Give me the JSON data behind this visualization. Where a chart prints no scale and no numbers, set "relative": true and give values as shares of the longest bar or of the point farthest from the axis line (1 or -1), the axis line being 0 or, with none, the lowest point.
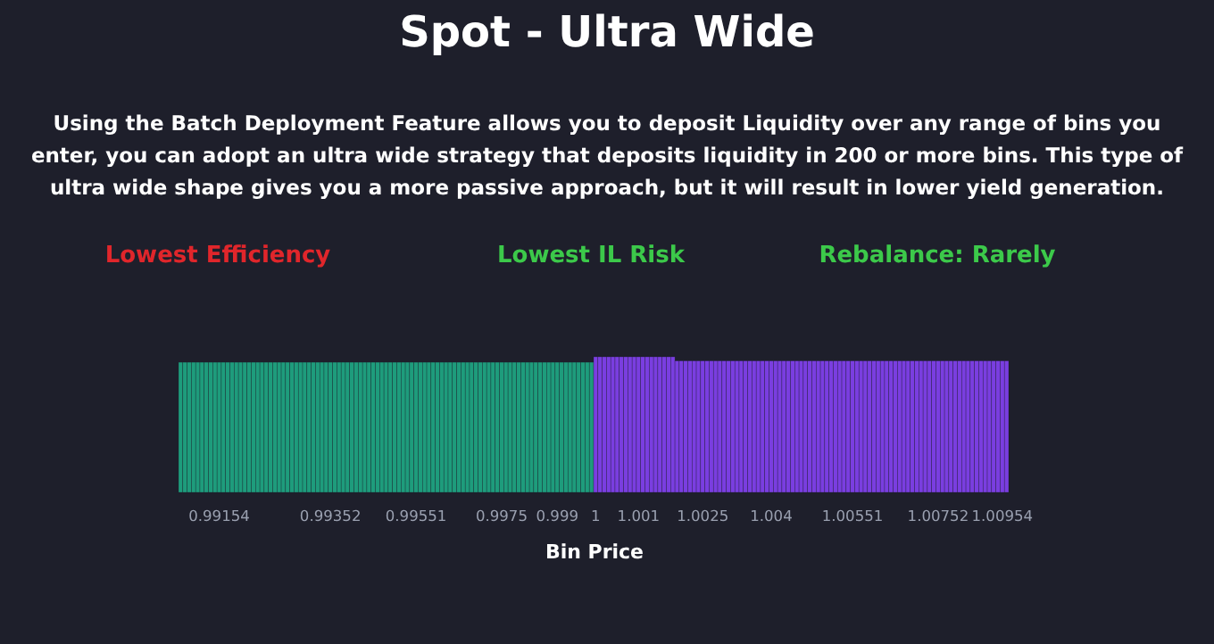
{
  "chart_data": {
    "type": "bar",
    "relative": true,
    "title": "Spot - Ultra Wide",
    "subtitle": "Using the Batch Deployment Feature allows you to deposit Liquidity over any range of bins you enter, you can adopt an ultra wide strategy that deposits liquidity in 200 or more bins. This type of ultra wide shape gives you a more passive approach, but it will result in lower yield generation.",
    "annotations": [
      "Lowest Efficiency",
      "Lowest IL Risk",
      "Rebalance: Rarely"
    ],
    "xlabel": "Bin Price",
    "categories": [
      null,
      null,
      null,
      null,
      null,
      null,
      null,
      null,
      null,
      "0.99154",
      null,
      null,
      null,
      null,
      null,
      null,
      null,
      null,
      null,
      null,
      null,
      null,
      null,
      null,
      null,
      null,
      null,
      null,
      null,
      null,
      null,
      null,
      null,
      null,
      null,
      "0.99352",
      null,
      null,
      null,
      null,
      null,
      null,
      null,
      null,
      null,
      null,
      null,
      null,
      null,
      null,
      null,
      null,
      null,
      null,
      null,
      "0.99551",
      null,
      null,
      null,
      null,
      null,
      null,
      null,
      null,
      null,
      null,
      null,
      null,
      null,
      null,
      null,
      null,
      null,
      null,
      null,
      "0.9975",
      null,
      null,
      null,
      null,
      null,
      null,
      null,
      null,
      null,
      null,
      null,
      null,
      "0.999",
      null,
      null,
      null,
      null,
      null,
      null,
      null,
      null,
      "1",
      null,
      null,
      null,
      null,
      null,
      null,
      null,
      null,
      null,
      "1.001",
      null,
      null,
      null,
      null,
      null,
      null,
      null,
      null,
      null,
      null,
      null,
      null,
      null,
      null,
      "1.0025",
      null,
      null,
      null,
      null,
      null,
      null,
      null,
      null,
      null,
      null,
      null,
      null,
      null,
      null,
      null,
      "1.004",
      null,
      null,
      null,
      null,
      null,
      null,
      null,
      null,
      null,
      null,
      null,
      null,
      null,
      null,
      null,
      null,
      null,
      null,
      "1.00551",
      null,
      null,
      null,
      null,
      null,
      null,
      null,
      null,
      null,
      null,
      null,
      null,
      null,
      null,
      null,
      null,
      null,
      null,
      null,
      "1.00752",
      null,
      null,
      null,
      null,
      null,
      null,
      null,
      null,
      null,
      null,
      null,
      null,
      null,
      null,
      "1.00954",
      null
    ],
    "values": [
      0.96,
      0.96,
      0.96,
      0.96,
      0.96,
      0.96,
      0.96,
      0.96,
      0.96,
      0.96,
      0.96,
      0.96,
      0.96,
      0.96,
      0.96,
      0.96,
      0.96,
      0.96,
      0.96,
      0.96,
      0.96,
      0.96,
      0.96,
      0.96,
      0.96,
      0.96,
      0.96,
      0.96,
      0.96,
      0.96,
      0.96,
      0.96,
      0.96,
      0.96,
      0.96,
      0.96,
      0.96,
      0.96,
      0.96,
      0.96,
      0.96,
      0.96,
      0.96,
      0.96,
      0.96,
      0.96,
      0.96,
      0.96,
      0.96,
      0.96,
      0.96,
      0.96,
      0.96,
      0.96,
      0.96,
      0.96,
      0.96,
      0.96,
      0.96,
      0.96,
      0.96,
      0.96,
      0.96,
      0.96,
      0.96,
      0.96,
      0.96,
      0.96,
      0.96,
      0.96,
      0.96,
      0.96,
      0.96,
      0.96,
      0.96,
      0.96,
      0.96,
      0.96,
      0.96,
      0.96,
      0.96,
      0.96,
      0.96,
      0.96,
      0.96,
      0.96,
      0.96,
      0.96,
      0.96,
      0.96,
      0.96,
      0.96,
      0.96,
      0.96,
      0.96,
      0.96,
      0.96,
      1,
      1,
      1,
      1,
      1,
      1,
      1,
      1,
      1,
      1,
      1,
      1,
      1,
      1,
      1,
      1,
      1,
      1,
      1,
      0.97,
      0.97,
      0.97,
      0.97,
      0.97,
      0.97,
      0.97,
      0.97,
      0.97,
      0.97,
      0.97,
      0.97,
      0.97,
      0.97,
      0.97,
      0.97,
      0.97,
      0.97,
      0.97,
      0.97,
      0.97,
      0.97,
      0.97,
      0.97,
      0.97,
      0.97,
      0.97,
      0.97,
      0.97,
      0.97,
      0.97,
      0.97,
      0.97,
      0.97,
      0.97,
      0.97,
      0.97,
      0.97,
      0.97,
      0.97,
      0.97,
      0.97,
      0.97,
      0.97,
      0.97,
      0.97,
      0.97,
      0.97,
      0.97,
      0.97,
      0.97,
      0.97,
      0.97,
      0.97,
      0.97,
      0.97,
      0.97,
      0.97,
      0.97,
      0.97,
      0.97,
      0.97,
      0.97,
      0.97,
      0.97,
      0.97,
      0.97,
      0.97,
      0.97,
      0.97,
      0.97,
      0.97,
      0.97,
      0.97,
      0.97,
      0.97,
      0.97,
      0.97
    ],
    "colors": [
      "#1e9c7c",
      "#1e9c7c",
      "#1e9c7c",
      "#1e9c7c",
      "#1e9c7c",
      "#1e9c7c",
      "#1e9c7c",
      "#1e9c7c",
      "#1e9c7c",
      "#1e9c7c",
      "#1e9c7c",
      "#1e9c7c",
      "#1e9c7c",
      "#1e9c7c",
      "#1e9c7c",
      "#1e9c7c",
      "#1e9c7c",
      "#1e9c7c",
      "#1e9c7c",
      "#1e9c7c",
      "#1e9c7c",
      "#1e9c7c",
      "#1e9c7c",
      "#1e9c7c",
      "#1e9c7c",
      "#1e9c7c",
      "#1e9c7c",
      "#1e9c7c",
      "#1e9c7c",
      "#1e9c7c",
      "#1e9c7c",
      "#1e9c7c",
      "#1e9c7c",
      "#1e9c7c",
      "#1e9c7c",
      "#1e9c7c",
      "#1e9c7c",
      "#1e9c7c",
      "#1e9c7c",
      "#1e9c7c",
      "#1e9c7c",
      "#1e9c7c",
      "#1e9c7c",
      "#1e9c7c",
      "#1e9c7c",
      "#1e9c7c",
      "#1e9c7c",
      "#1e9c7c",
      "#1e9c7c",
      "#1e9c7c",
      "#1e9c7c",
      "#1e9c7c",
      "#1e9c7c",
      "#1e9c7c",
      "#1e9c7c",
      "#1e9c7c",
      "#1e9c7c",
      "#1e9c7c",
      "#1e9c7c",
      "#1e9c7c",
      "#1e9c7c",
      "#1e9c7c",
      "#1e9c7c",
      "#1e9c7c",
      "#1e9c7c",
      "#1e9c7c",
      "#1e9c7c",
      "#1e9c7c",
      "#1e9c7c",
      "#1e9c7c",
      "#1e9c7c",
      "#1e9c7c",
      "#1e9c7c",
      "#1e9c7c",
      "#1e9c7c",
      "#1e9c7c",
      "#1e9c7c",
      "#1e9c7c",
      "#1e9c7c",
      "#1e9c7c",
      "#1e9c7c",
      "#1e9c7c",
      "#1e9c7c",
      "#1e9c7c",
      "#1e9c7c",
      "#1e9c7c",
      "#1e9c7c",
      "#1e9c7c",
      "#1e9c7c",
      "#1e9c7c",
      "#1e9c7c",
      "#1e9c7c",
      "#1e9c7c",
      "#1e9c7c",
      "#1e9c7c",
      "#1e9c7c",
      "#1e9c7c",
      "#7a3ee0",
      "#7a3ee0",
      "#7a3ee0",
      "#7a3ee0",
      "#7a3ee0",
      "#7a3ee0",
      "#7a3ee0",
      "#7a3ee0",
      "#7a3ee0",
      "#7a3ee0",
      "#7a3ee0",
      "#7a3ee0",
      "#7a3ee0",
      "#7a3ee0",
      "#7a3ee0",
      "#7a3ee0",
      "#7a3ee0",
      "#7a3ee0",
      "#7a3ee0",
      "#7a3ee0",
      "#7a3ee0",
      "#7a3ee0",
      "#7a3ee0",
      "#7a3ee0",
      "#7a3ee0",
      "#7a3ee0",
      "#7a3ee0",
      "#7a3ee0",
      "#7a3ee0",
      "#7a3ee0",
      "#7a3ee0",
      "#7a3ee0",
      "#7a3ee0",
      "#7a3ee0",
      "#7a3ee0",
      "#7a3ee0",
      "#7a3ee0",
      "#7a3ee0",
      "#7a3ee0",
      "#7a3ee0",
      "#7a3ee0",
      "#7a3ee0",
      "#7a3ee0",
      "#7a3ee0",
      "#7a3ee0",
      "#7a3ee0",
      "#7a3ee0",
      "#7a3ee0",
      "#7a3ee0",
      "#7a3ee0",
      "#7a3ee0",
      "#7a3ee0",
      "#7a3ee0",
      "#7a3ee0",
      "#7a3ee0",
      "#7a3ee0",
      "#7a3ee0",
      "#7a3ee0",
      "#7a3ee0",
      "#7a3ee0",
      "#7a3ee0",
      "#7a3ee0",
      "#7a3ee0",
      "#7a3ee0",
      "#7a3ee0",
      "#7a3ee0",
      "#7a3ee0",
      "#7a3ee0",
      "#7a3ee0",
      "#7a3ee0",
      "#7a3ee0",
      "#7a3ee0",
      "#7a3ee0",
      "#7a3ee0",
      "#7a3ee0",
      "#7a3ee0",
      "#7a3ee0",
      "#7a3ee0",
      "#7a3ee0",
      "#7a3ee0",
      "#7a3ee0",
      "#7a3ee0",
      "#7a3ee0",
      "#7a3ee0",
      "#7a3ee0",
      "#7a3ee0",
      "#7a3ee0",
      "#7a3ee0",
      "#7a3ee0",
      "#7a3ee0",
      "#7a3ee0",
      "#7a3ee0",
      "#7a3ee0",
      "#7a3ee0",
      "#7a3ee0",
      "#7a3ee0",
      "#7a3ee0"
    ]
  }
}
